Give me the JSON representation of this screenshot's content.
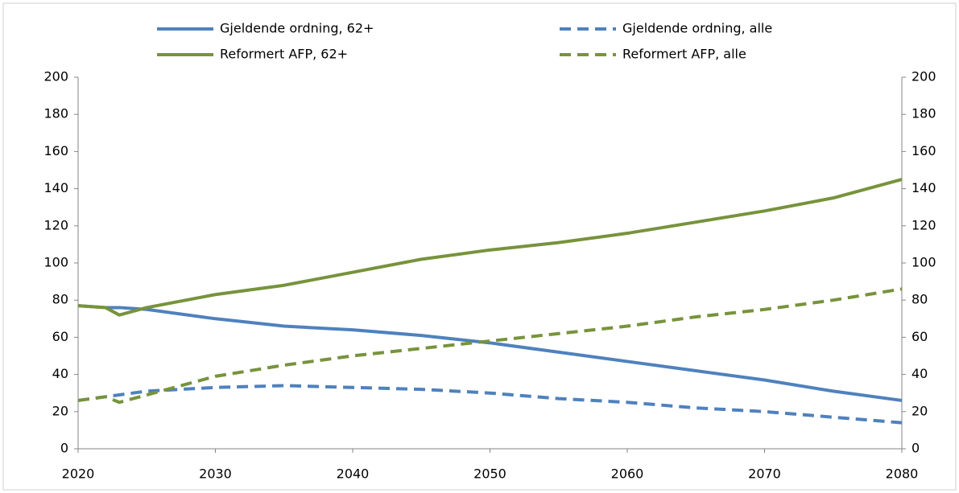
{
  "chart_data": {
    "type": "line",
    "x": [
      2020,
      2022,
      2023,
      2025,
      2030,
      2035,
      2040,
      2045,
      2050,
      2055,
      2060,
      2065,
      2070,
      2075,
      2080
    ],
    "series": [
      {
        "name": "Gjeldende ordning, 62+",
        "color": "#4f81bd",
        "style": "solid",
        "values": [
          77,
          76,
          76,
          75,
          70,
          66,
          64,
          61,
          57,
          52,
          47,
          42,
          37,
          31,
          26
        ]
      },
      {
        "name": "Gjeldende ordning, alle",
        "color": "#4f81bd",
        "style": "dashed",
        "values": [
          26,
          28,
          29,
          31,
          33,
          34,
          33,
          32,
          30,
          27,
          25,
          22,
          20,
          17,
          14
        ]
      },
      {
        "name": "Reformert AFP, 62+",
        "color": "#77933c",
        "style": "solid",
        "values": [
          77,
          76,
          72,
          76,
          83,
          88,
          95,
          102,
          107,
          111,
          116,
          122,
          128,
          135,
          145
        ]
      },
      {
        "name": "Reformert AFP, alle",
        "color": "#77933c",
        "style": "dashed",
        "values": [
          26,
          28,
          25,
          29,
          39,
          45,
          50,
          54,
          58,
          62,
          66,
          71,
          75,
          80,
          86
        ]
      }
    ],
    "xlim": [
      2020,
      2080
    ],
    "xticks": [
      2020,
      2030,
      2040,
      2050,
      2060,
      2070,
      2080
    ],
    "ylim": [
      0,
      200
    ],
    "yticks": [
      0,
      20,
      40,
      60,
      80,
      100,
      120,
      140,
      160,
      180,
      200
    ],
    "y2lim": [
      0,
      200
    ],
    "y2ticks": [
      0,
      20,
      40,
      60,
      80,
      100,
      120,
      140,
      160,
      180,
      200
    ],
    "grid": false,
    "legend": "top"
  }
}
